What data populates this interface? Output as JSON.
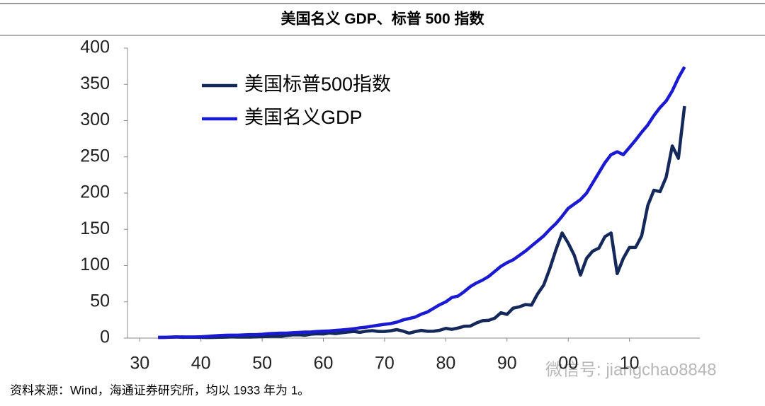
{
  "chart_data": {
    "type": "line",
    "title": "美国名义 GDP、标普 500 指数",
    "source": "资料来源：Wind，海通证券研究所，均以 1933 年为 1。",
    "watermark": "微信号: jiangchao8848",
    "x": [
      1933,
      1934,
      1935,
      1936,
      1937,
      1938,
      1939,
      1940,
      1941,
      1942,
      1943,
      1944,
      1945,
      1946,
      1947,
      1948,
      1949,
      1950,
      1951,
      1952,
      1953,
      1954,
      1955,
      1956,
      1957,
      1958,
      1959,
      1960,
      1961,
      1962,
      1963,
      1964,
      1965,
      1966,
      1967,
      1968,
      1969,
      1970,
      1971,
      1972,
      1973,
      1974,
      1975,
      1976,
      1977,
      1978,
      1979,
      1980,
      1981,
      1982,
      1983,
      1984,
      1985,
      1986,
      1987,
      1988,
      1989,
      1990,
      1991,
      1992,
      1993,
      1994,
      1995,
      1996,
      1997,
      1998,
      1999,
      2000,
      2001,
      2002,
      2003,
      2004,
      2005,
      2006,
      2007,
      2008,
      2009,
      2010,
      2011,
      2012,
      2013,
      2014,
      2015,
      2016,
      2017,
      2018,
      2019
    ],
    "series": [
      {
        "name": "美国标普500指数",
        "color": "#14285a",
        "values": [
          1.0,
          0.94,
          1.33,
          1.7,
          1.05,
          1.31,
          1.24,
          1.05,
          0.86,
          0.97,
          1.16,
          1.32,
          1.72,
          1.51,
          1.51,
          1.5,
          1.66,
          2.02,
          2.36,
          2.63,
          2.46,
          3.56,
          4.5,
          4.62,
          3.96,
          5.47,
          5.93,
          5.75,
          7.09,
          6.25,
          7.43,
          8.4,
          9.15,
          7.95,
          9.55,
          10.3,
          9.12,
          9.13,
          10.1,
          11.7,
          9.66,
          6.79,
          8.93,
          10.6,
          9.42,
          9.51,
          10.7,
          13.4,
          12.1,
          13.9,
          16.3,
          16.6,
          20.9,
          24.0,
          24.5,
          27.5,
          35.0,
          32.7,
          41.3,
          43.1,
          46.2,
          45.5,
          61.0,
          73.3,
          96.1,
          122,
          145,
          131,
          114,
          87,
          110,
          120,
          124,
          140,
          145,
          89,
          110,
          125,
          125,
          141,
          183,
          204,
          202,
          222,
          265,
          248,
          320
        ]
      },
      {
        "name": "美国名义GDP",
        "color": "#1a1ad2",
        "values": [
          1.0,
          1.15,
          1.28,
          1.47,
          1.63,
          1.52,
          1.63,
          1.79,
          2.26,
          2.9,
          3.55,
          3.93,
          3.99,
          3.97,
          4.37,
          4.81,
          4.76,
          5.25,
          6.07,
          6.42,
          6.8,
          6.84,
          7.45,
          7.85,
          8.29,
          8.41,
          9.13,
          9.49,
          9.84,
          10.6,
          11.2,
          12.0,
          13.0,
          14.2,
          15.1,
          16.5,
          17.8,
          19,
          20,
          22,
          25,
          27,
          29,
          33,
          36,
          41,
          46,
          50,
          56,
          58,
          64,
          71,
          76,
          80,
          85,
          92,
          99,
          104,
          108,
          114,
          120,
          127,
          134,
          141,
          150,
          158,
          168,
          179,
          185,
          191,
          200,
          214,
          228,
          242,
          253,
          257,
          253,
          263,
          273,
          284,
          294,
          307,
          318,
          327,
          341,
          359,
          374
        ]
      }
    ],
    "xlim": [
      1928,
      2021.5
    ],
    "xticks": [
      {
        "value": 1930,
        "label": "30"
      },
      {
        "value": 1940,
        "label": "40"
      },
      {
        "value": 1950,
        "label": "50"
      },
      {
        "value": 1960,
        "label": "60"
      },
      {
        "value": 1970,
        "label": "70"
      },
      {
        "value": 1980,
        "label": "80"
      },
      {
        "value": 1990,
        "label": "90"
      },
      {
        "value": 2000,
        "label": "00"
      },
      {
        "value": 2010,
        "label": "10"
      }
    ],
    "ylim": [
      0,
      400
    ],
    "yticks": [
      0,
      50,
      100,
      150,
      200,
      250,
      300,
      350,
      400
    ],
    "legend": "upper left"
  }
}
